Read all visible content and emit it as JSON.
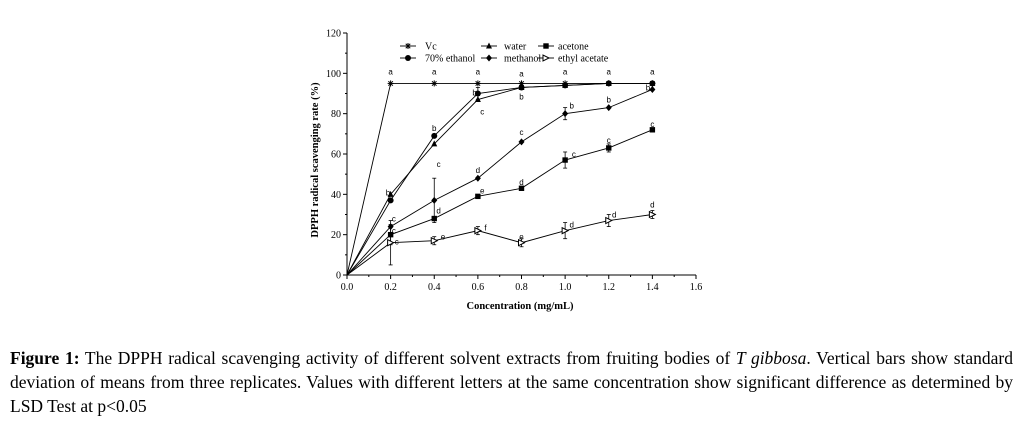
{
  "chart_data": {
    "type": "line",
    "title": "",
    "xlabel": "Concentration (mg/mL)",
    "ylabel": "DPPH radical scavenging rate (%)",
    "xlim": [
      0.0,
      1.6
    ],
    "ylim": [
      0,
      120
    ],
    "x_ticks": [
      "0.0",
      "0.2",
      "0.4",
      "0.6",
      "0.8",
      "1.0",
      "1.2",
      "1.4",
      "1.6"
    ],
    "y_ticks": [
      "0",
      "20",
      "40",
      "60",
      "80",
      "100",
      "120"
    ],
    "grid": false,
    "legend_position": "top-left",
    "legend_layout": [
      [
        "Vc",
        "water",
        "acetone"
      ],
      [
        "70% ethanol",
        "methanol",
        "ethyl acetate"
      ]
    ],
    "series": [
      {
        "name": "Vc",
        "marker": "asterisk",
        "x": [
          0,
          0.2,
          0.4,
          0.6,
          0.8,
          1.0,
          1.2,
          1.4
        ],
        "y": [
          0,
          95,
          95,
          95,
          95,
          95,
          95,
          95
        ],
        "err": [
          0,
          0,
          0,
          0,
          0,
          0,
          0,
          0
        ]
      },
      {
        "name": "water",
        "marker": "triangle",
        "x": [
          0,
          0.2,
          0.4,
          0.6,
          0.8,
          1.0,
          1.2,
          1.4
        ],
        "y": [
          0,
          40,
          65,
          87,
          93,
          94,
          95,
          95
        ],
        "err": [
          0,
          0,
          0,
          0,
          0,
          0,
          0,
          0
        ]
      },
      {
        "name": "acetone",
        "marker": "square",
        "x": [
          0,
          0.2,
          0.4,
          0.6,
          0.8,
          1.0,
          1.2,
          1.4
        ],
        "y": [
          0,
          20,
          28,
          39,
          43,
          57,
          63,
          72
        ],
        "err": [
          0,
          5,
          0,
          0,
          0,
          4,
          2,
          0
        ]
      },
      {
        "name": "70% ethanol",
        "marker": "circle",
        "x": [
          0,
          0.2,
          0.4,
          0.6,
          0.8,
          1.0,
          1.2,
          1.4
        ],
        "y": [
          0,
          37,
          69,
          90,
          93,
          94,
          95,
          95
        ],
        "err": [
          0,
          0,
          0,
          3,
          0,
          0,
          0,
          0
        ]
      },
      {
        "name": "methanol",
        "marker": "diamond",
        "x": [
          0,
          0.2,
          0.4,
          0.6,
          0.8,
          1.0,
          1.2,
          1.4
        ],
        "y": [
          0,
          24,
          37,
          48,
          66,
          80,
          83,
          92
        ],
        "err": [
          0,
          0,
          11,
          0,
          0,
          3,
          0,
          0
        ]
      },
      {
        "name": "ethyl acetate",
        "marker": "open-triangle",
        "x": [
          0,
          0.2,
          0.4,
          0.6,
          0.8,
          1.0,
          1.2,
          1.4
        ],
        "y": [
          0,
          16,
          17,
          22,
          16,
          22,
          27,
          30
        ],
        "err": [
          0,
          11,
          2,
          2,
          2,
          4,
          3,
          2
        ]
      }
    ],
    "annotations": [
      {
        "x": 0.2,
        "y": 101,
        "text": "a"
      },
      {
        "x": 0.4,
        "y": 101,
        "text": "a"
      },
      {
        "x": 0.6,
        "y": 101,
        "text": "a"
      },
      {
        "x": 0.8,
        "y": 100,
        "text": "a"
      },
      {
        "x": 1.0,
        "y": 101,
        "text": "a"
      },
      {
        "x": 1.2,
        "y": 101,
        "text": "a"
      },
      {
        "x": 1.4,
        "y": 101,
        "text": "a"
      },
      {
        "x": 0.188,
        "y": 41,
        "text": "b"
      },
      {
        "x": 0.4,
        "y": 73,
        "text": "b"
      },
      {
        "x": 0.585,
        "y": 90.5,
        "text": "b"
      },
      {
        "x": 0.8,
        "y": 88.5,
        "text": "b"
      },
      {
        "x": 1.03,
        "y": 84,
        "text": "b"
      },
      {
        "x": 1.2,
        "y": 87,
        "text": "b"
      },
      {
        "x": 1.38,
        "y": 93,
        "text": "b"
      },
      {
        "x": 0.215,
        "y": 28,
        "text": "c"
      },
      {
        "x": 0.215,
        "y": 22,
        "text": "c"
      },
      {
        "x": 0.228,
        "y": 16.5,
        "text": "c"
      },
      {
        "x": 0.42,
        "y": 55,
        "text": "c"
      },
      {
        "x": 0.62,
        "y": 81,
        "text": "c"
      },
      {
        "x": 0.8,
        "y": 71,
        "text": "c"
      },
      {
        "x": 1.04,
        "y": 60,
        "text": "c"
      },
      {
        "x": 1.2,
        "y": 67,
        "text": "c"
      },
      {
        "x": 1.4,
        "y": 75,
        "text": "c"
      },
      {
        "x": 0.42,
        "y": 32,
        "text": "d"
      },
      {
        "x": 0.6,
        "y": 52,
        "text": "d"
      },
      {
        "x": 0.8,
        "y": 46,
        "text": "d"
      },
      {
        "x": 1.03,
        "y": 25,
        "text": "d"
      },
      {
        "x": 1.225,
        "y": 30,
        "text": "d"
      },
      {
        "x": 1.4,
        "y": 35,
        "text": "d"
      },
      {
        "x": 0.62,
        "y": 42,
        "text": "e"
      },
      {
        "x": 0.44,
        "y": 19,
        "text": "e"
      },
      {
        "x": 0.8,
        "y": 19,
        "text": "e"
      },
      {
        "x": 0.635,
        "y": 23.5,
        "text": "f"
      }
    ],
    "caption": {
      "label": "Figure 1:",
      "text_before_italic": " The DPPH radical scavenging activity of different solvent extracts from fruiting bodies of ",
      "italic": "T gibbosa",
      "text_after_italic": ". Vertical bars show standard deviation of means from three replicates. Values with different letters at the same concentration show significant difference as determined by LSD Test at p<0.05"
    }
  }
}
